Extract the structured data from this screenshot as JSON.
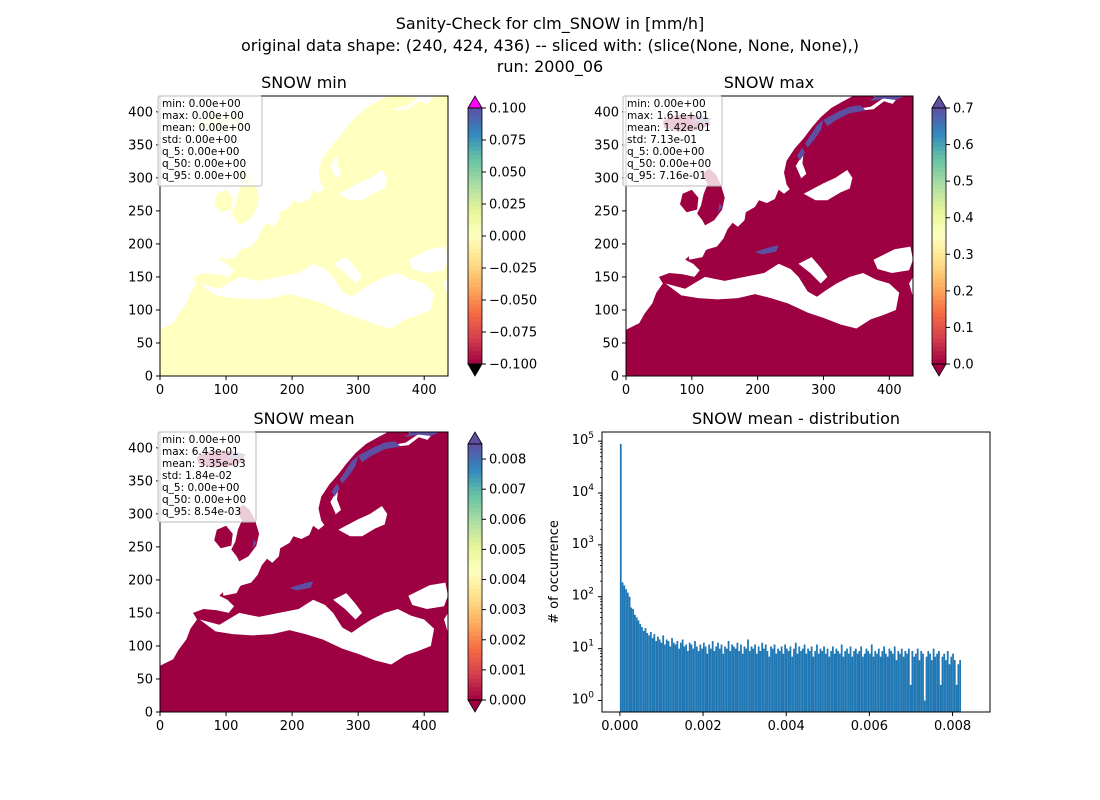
{
  "figure": {
    "title_lines": [
      "Sanity-Check for clm_SNOW in [mm/h]",
      "original data shape: (240, 424, 436) -- sliced with: (slice(None, None, None),)",
      "run: 2000_06"
    ]
  },
  "colormap": {
    "name": "Spectral",
    "stops": [
      "#9e0142",
      "#d53e4f",
      "#f46d43",
      "#fdae61",
      "#fee08b",
      "#ffffbf",
      "#e6f598",
      "#abdda4",
      "#66c2a5",
      "#3288bd",
      "#5e4fa2"
    ],
    "over_color": "#ff00ff",
    "under_color": "#000000"
  },
  "chart_data": [
    {
      "type": "heatmap",
      "title": "SNOW min",
      "xlim": [
        0,
        436
      ],
      "ylim": [
        0,
        424
      ],
      "xticks": [
        "0",
        "100",
        "200",
        "300",
        "400"
      ],
      "yticks": [
        "0",
        "50",
        "100",
        "150",
        "200",
        "250",
        "300",
        "350",
        "400"
      ],
      "value_range": [
        -0.1,
        0.1
      ],
      "land_value": 0.0,
      "snow_value": 0.0,
      "colorbar_ticks": [
        "0.100",
        "0.075",
        "0.050",
        "0.025",
        "0.000",
        "−0.025",
        "−0.050",
        "−0.075",
        "−0.100"
      ],
      "colorbar_extend": "both",
      "stats": [
        "min: 0.00e+00",
        "max: 0.00e+00",
        "mean: 0.00e+00",
        "std: 0.00e+00",
        "q_5: 0.00e+00",
        "q_50: 0.00e+00",
        "q_95: 0.00e+00"
      ]
    },
    {
      "type": "heatmap",
      "title": "SNOW max",
      "xlim": [
        0,
        436
      ],
      "ylim": [
        0,
        424
      ],
      "xticks": [
        "0",
        "100",
        "200",
        "300",
        "400"
      ],
      "yticks": [
        "0",
        "50",
        "100",
        "150",
        "200",
        "250",
        "300",
        "350",
        "400"
      ],
      "value_range": [
        0,
        0.7
      ],
      "land_value": 0.0,
      "snow_value": 0.7,
      "colorbar_ticks": [
        "0.7",
        "0.6",
        "0.5",
        "0.4",
        "0.3",
        "0.2",
        "0.1",
        "0.0"
      ],
      "colorbar_extend": "both",
      "stats": [
        "min: 0.00e+00",
        "max: 1.61e+01",
        "mean: 1.42e-01",
        "std: 7.13e-01",
        "q_5: 0.00e+00",
        "q_50: 0.00e+00",
        "q_95: 7.16e-01"
      ]
    },
    {
      "type": "heatmap",
      "title": "SNOW mean",
      "xlim": [
        0,
        436
      ],
      "ylim": [
        0,
        424
      ],
      "xticks": [
        "0",
        "100",
        "200",
        "300",
        "400"
      ],
      "yticks": [
        "0",
        "50",
        "100",
        "150",
        "200",
        "250",
        "300",
        "350",
        "400"
      ],
      "value_range": [
        0,
        0.0085
      ],
      "land_value": 0.0,
      "snow_value": 0.0085,
      "colorbar_ticks": [
        "0.008",
        "0.007",
        "0.006",
        "0.005",
        "0.004",
        "0.003",
        "0.002",
        "0.001",
        "0.000"
      ],
      "colorbar_extend": "both",
      "stats": [
        "min: 0.00e+00",
        "max: 6.43e-01",
        "mean: 3.35e-03",
        "std: 1.84e-02",
        "q_5: 0.00e+00",
        "q_50: 0.00e+00",
        "q_95: 8.54e-03"
      ]
    },
    {
      "type": "bar",
      "title": "SNOW mean - distribution",
      "ylabel": "# of occurrence",
      "yscale": "log",
      "xlim": [
        -0.00043,
        0.0089
      ],
      "ylim": [
        0.6,
        150000
      ],
      "xticks": [
        0.0,
        0.002,
        0.004,
        0.006,
        0.008
      ],
      "xtick_labels": [
        "0.000",
        "0.002",
        "0.004",
        "0.006",
        "0.008"
      ],
      "yticks_exp": [
        0,
        1,
        2,
        3,
        4,
        5
      ],
      "bar_color": "#1f77b4",
      "bin_start": 0.0,
      "bin_width": 4.25e-05,
      "counts": [
        88000,
        190,
        165,
        140,
        120,
        100,
        62,
        58,
        45,
        40,
        35,
        30,
        26,
        22,
        25,
        20,
        18,
        21,
        16,
        19,
        14,
        17,
        15,
        13,
        18,
        12,
        15,
        14,
        11,
        16,
        13,
        12,
        14,
        10,
        13,
        15,
        11,
        12,
        9,
        13,
        12,
        10,
        14,
        11,
        9,
        12,
        10,
        13,
        11,
        8,
        12,
        10,
        14,
        9,
        11,
        13,
        10,
        12,
        8,
        11,
        10,
        14,
        9,
        12,
        11,
        10,
        13,
        9,
        12,
        8,
        11,
        10,
        15,
        9,
        11,
        10,
        12,
        8,
        11,
        9,
        13,
        10,
        12,
        9,
        7,
        11,
        10,
        12,
        8,
        10,
        9,
        11,
        8,
        12,
        10,
        9,
        11,
        7,
        10,
        13,
        8,
        11,
        9,
        10,
        12,
        8,
        10,
        9,
        11,
        7,
        9,
        12,
        8,
        10,
        9,
        11,
        8,
        10,
        7,
        9,
        11,
        8,
        10,
        9,
        8,
        12,
        7,
        9,
        10,
        8,
        11,
        7,
        9,
        10,
        8,
        9,
        11,
        7,
        8,
        10,
        9,
        8,
        12,
        7,
        9,
        8,
        10,
        7,
        9,
        11,
        8,
        7,
        10,
        9,
        8,
        11,
        6,
        9,
        8,
        10,
        7,
        9,
        8,
        10,
        2,
        9,
        7,
        8,
        10,
        6,
        9,
        8,
        1,
        7,
        9,
        8,
        6,
        10,
        7,
        8,
        9,
        2,
        7,
        8,
        6,
        9,
        5,
        7,
        8,
        6,
        2,
        5,
        6
      ]
    }
  ]
}
